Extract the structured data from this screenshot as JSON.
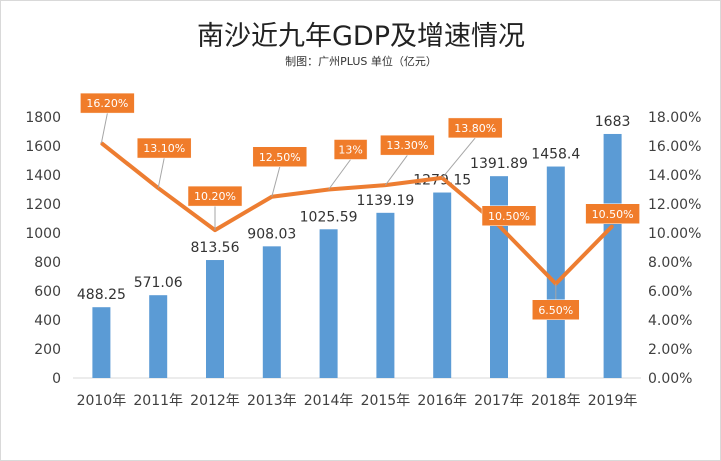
{
  "chart_data": {
    "type": "bar",
    "title": "南沙近九年GDP及增速情况",
    "subtitle": "制图：广州PLUS  单位（亿元）",
    "categories": [
      "2010年",
      "2011年",
      "2012年",
      "2013年",
      "2014年",
      "2015年",
      "2016年",
      "2017年",
      "2018年",
      "2019年"
    ],
    "series": [
      {
        "type": "bar",
        "axis": "left",
        "values": [
          488.25,
          571.06,
          813.56,
          908.03,
          1025.59,
          1139.19,
          1279.15,
          1391.89,
          1458.4,
          1683
        ],
        "labels": [
          "488.25",
          "571.06",
          "813.56",
          "908.03",
          "1025.59",
          "1139.19",
          "1279.15",
          "1391.89",
          "1458.4",
          "1683"
        ],
        "color": "#5b9bd5"
      },
      {
        "type": "line",
        "axis": "right",
        "values": [
          16.2,
          13.1,
          10.2,
          12.5,
          13.0,
          13.3,
          13.8,
          10.5,
          6.5,
          10.5
        ],
        "labels": [
          "16.20%",
          "13.10%",
          "10.20%",
          "12.50%",
          "13%",
          "13.30%",
          "13.80%",
          "10.50%",
          "6.50%",
          "10.50%"
        ],
        "color": "#ed7d31"
      }
    ],
    "y_left": {
      "range": [
        0,
        1800
      ],
      "ticks": [
        "0",
        "200",
        "400",
        "600",
        "800",
        "1000",
        "1200",
        "1400",
        "1600",
        "1800"
      ]
    },
    "y_right": {
      "range": [
        0,
        18
      ],
      "ticks": [
        "0.00%",
        "2.00%",
        "4.00%",
        "6.00%",
        "8.00%",
        "10.00%",
        "12.00%",
        "14.00%",
        "16.00%",
        "18.00%"
      ]
    },
    "grid": false,
    "legend": "none",
    "label_box_color": "#f07c2a",
    "leader_line_color": "#a6a6a6"
  }
}
